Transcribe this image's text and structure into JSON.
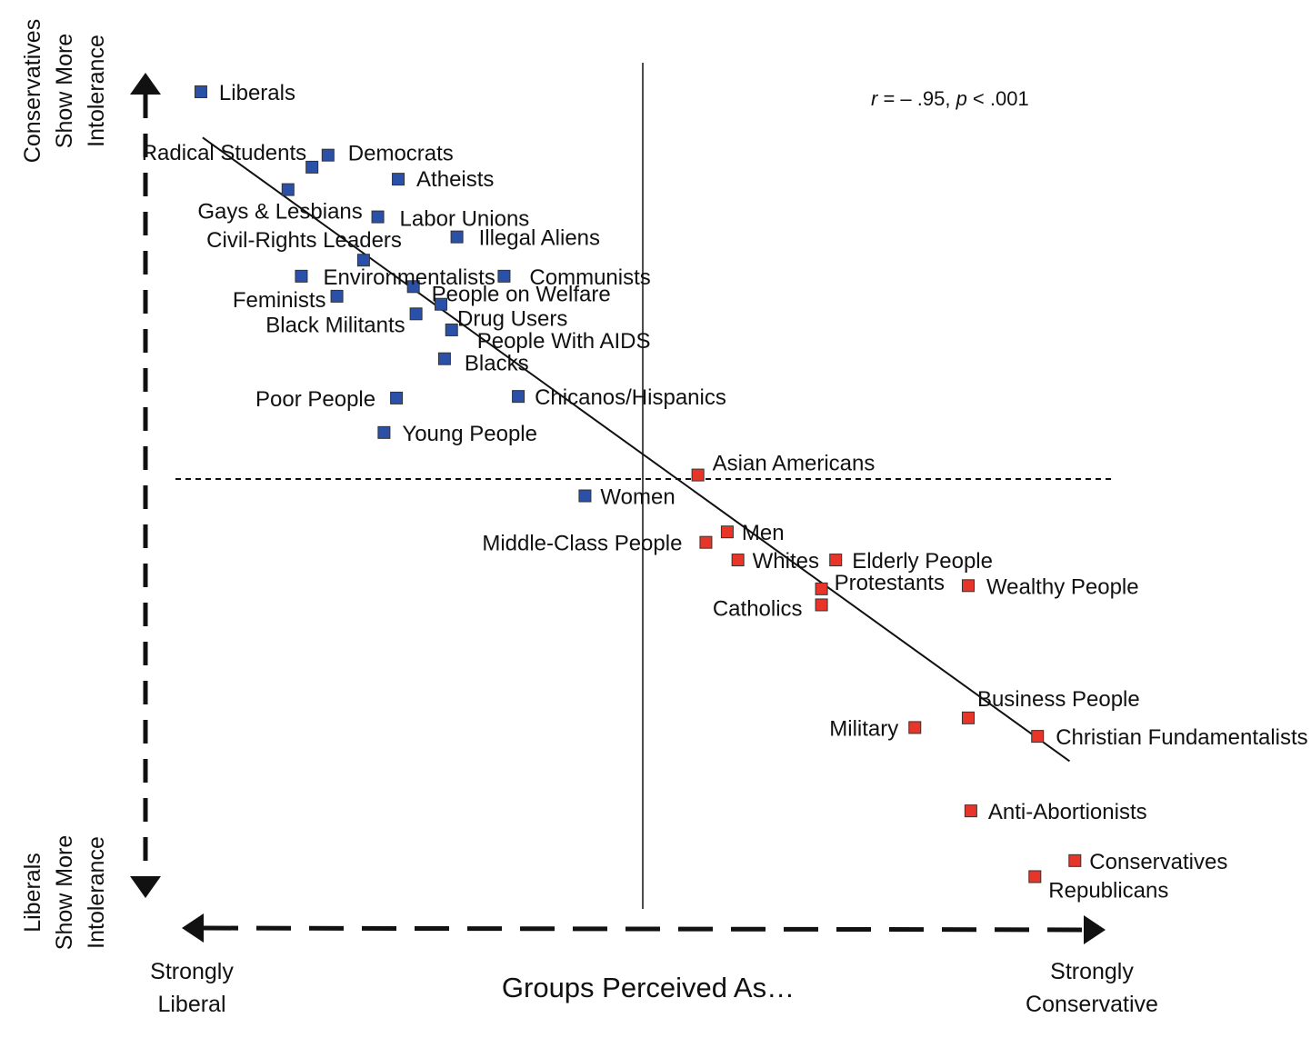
{
  "chart_data": {
    "type": "scatter",
    "xlabel": "Groups Perceived As…",
    "x_axis_ends": {
      "left": [
        "Strongly",
        "Liberal"
      ],
      "right": [
        "Strongly",
        "Conservative"
      ]
    },
    "y_axis_ends": {
      "top": [
        "Conservatives",
        "Show More",
        "Intolerance"
      ],
      "bottom": [
        "Liberals",
        "Show More",
        "Intolerance"
      ]
    },
    "annotation": {
      "r_symbol": "r",
      "r_text": " = – .95, ",
      "p_symbol": "p",
      "p_text": " < .001"
    },
    "xlim": [
      0,
      100
    ],
    "ylim": [
      0,
      100
    ],
    "midpoint": {
      "x": 50,
      "y": 50
    },
    "fit_line": {
      "x": [
        0.5,
        98
      ],
      "y": [
        92.6,
        14.8
      ]
    },
    "colors": {
      "liberal": "#2a50a8",
      "conservative": "#e8352a"
    },
    "series": [
      {
        "group": "liberal",
        "points": [
          {
            "label": "Liberals",
            "x": 0.3,
            "y": 98.3
          },
          {
            "label": "Radical Students",
            "x": 12.8,
            "y": 88.9
          },
          {
            "label": "Democrats",
            "x": 14.6,
            "y": 90.4
          },
          {
            "label": "Atheists",
            "x": 22.5,
            "y": 87.4
          },
          {
            "label": "Gays & Lesbians",
            "x": 10.1,
            "y": 86.1
          },
          {
            "label": "Labor Unions",
            "x": 20.2,
            "y": 82.7
          },
          {
            "label": "Illegal Aliens",
            "x": 29.1,
            "y": 80.2
          },
          {
            "label": "Civil-Rights Leaders",
            "x": 18.6,
            "y": 77.3
          },
          {
            "label": "Environmentalists",
            "x": 11.6,
            "y": 75.3
          },
          {
            "label": "Communists",
            "x": 34.4,
            "y": 75.3
          },
          {
            "label": "Feminists",
            "x": 15.6,
            "y": 72.8
          },
          {
            "label": "People on Welfare",
            "x": 24.2,
            "y": 74.0
          },
          {
            "label": "Drug Users",
            "x": 27.3,
            "y": 71.8
          },
          {
            "label": "Black Militants",
            "x": 24.5,
            "y": 70.6
          },
          {
            "label": "People With AIDS",
            "x": 28.5,
            "y": 68.6
          },
          {
            "label": "Blacks",
            "x": 27.7,
            "y": 65.0
          },
          {
            "label": "Poor People",
            "x": 22.3,
            "y": 60.1
          },
          {
            "label": "Chicanos/Hispanics",
            "x": 36.0,
            "y": 60.3
          },
          {
            "label": "Young People",
            "x": 20.9,
            "y": 55.8
          },
          {
            "label": "Women",
            "x": 43.5,
            "y": 47.9
          }
        ]
      },
      {
        "group": "conservative",
        "points": [
          {
            "label": "Asian Americans",
            "x": 56.2,
            "y": 50.5
          },
          {
            "label": "Men",
            "x": 59.5,
            "y": 43.4
          },
          {
            "label": "Middle-Class People",
            "x": 57.1,
            "y": 42.1
          },
          {
            "label": "Whites",
            "x": 60.7,
            "y": 39.9
          },
          {
            "label": "Elderly People",
            "x": 71.7,
            "y": 39.9
          },
          {
            "label": "Protestants",
            "x": 70.1,
            "y": 36.3
          },
          {
            "label": "Wealthy People",
            "x": 86.6,
            "y": 36.7
          },
          {
            "label": "Catholics",
            "x": 70.1,
            "y": 34.3
          },
          {
            "label": "Business People",
            "x": 86.6,
            "y": 20.2
          },
          {
            "label": "Military",
            "x": 80.6,
            "y": 19.0
          },
          {
            "label": "Christian Fundamentalists",
            "x": 94.4,
            "y": 17.9
          },
          {
            "label": "Anti-Abortionists",
            "x": 86.9,
            "y": 8.6
          },
          {
            "label": "Conservatives",
            "x": 98.6,
            "y": 2.4
          },
          {
            "label": "Republicans",
            "x": 94.1,
            "y": 0.4
          }
        ]
      }
    ]
  }
}
